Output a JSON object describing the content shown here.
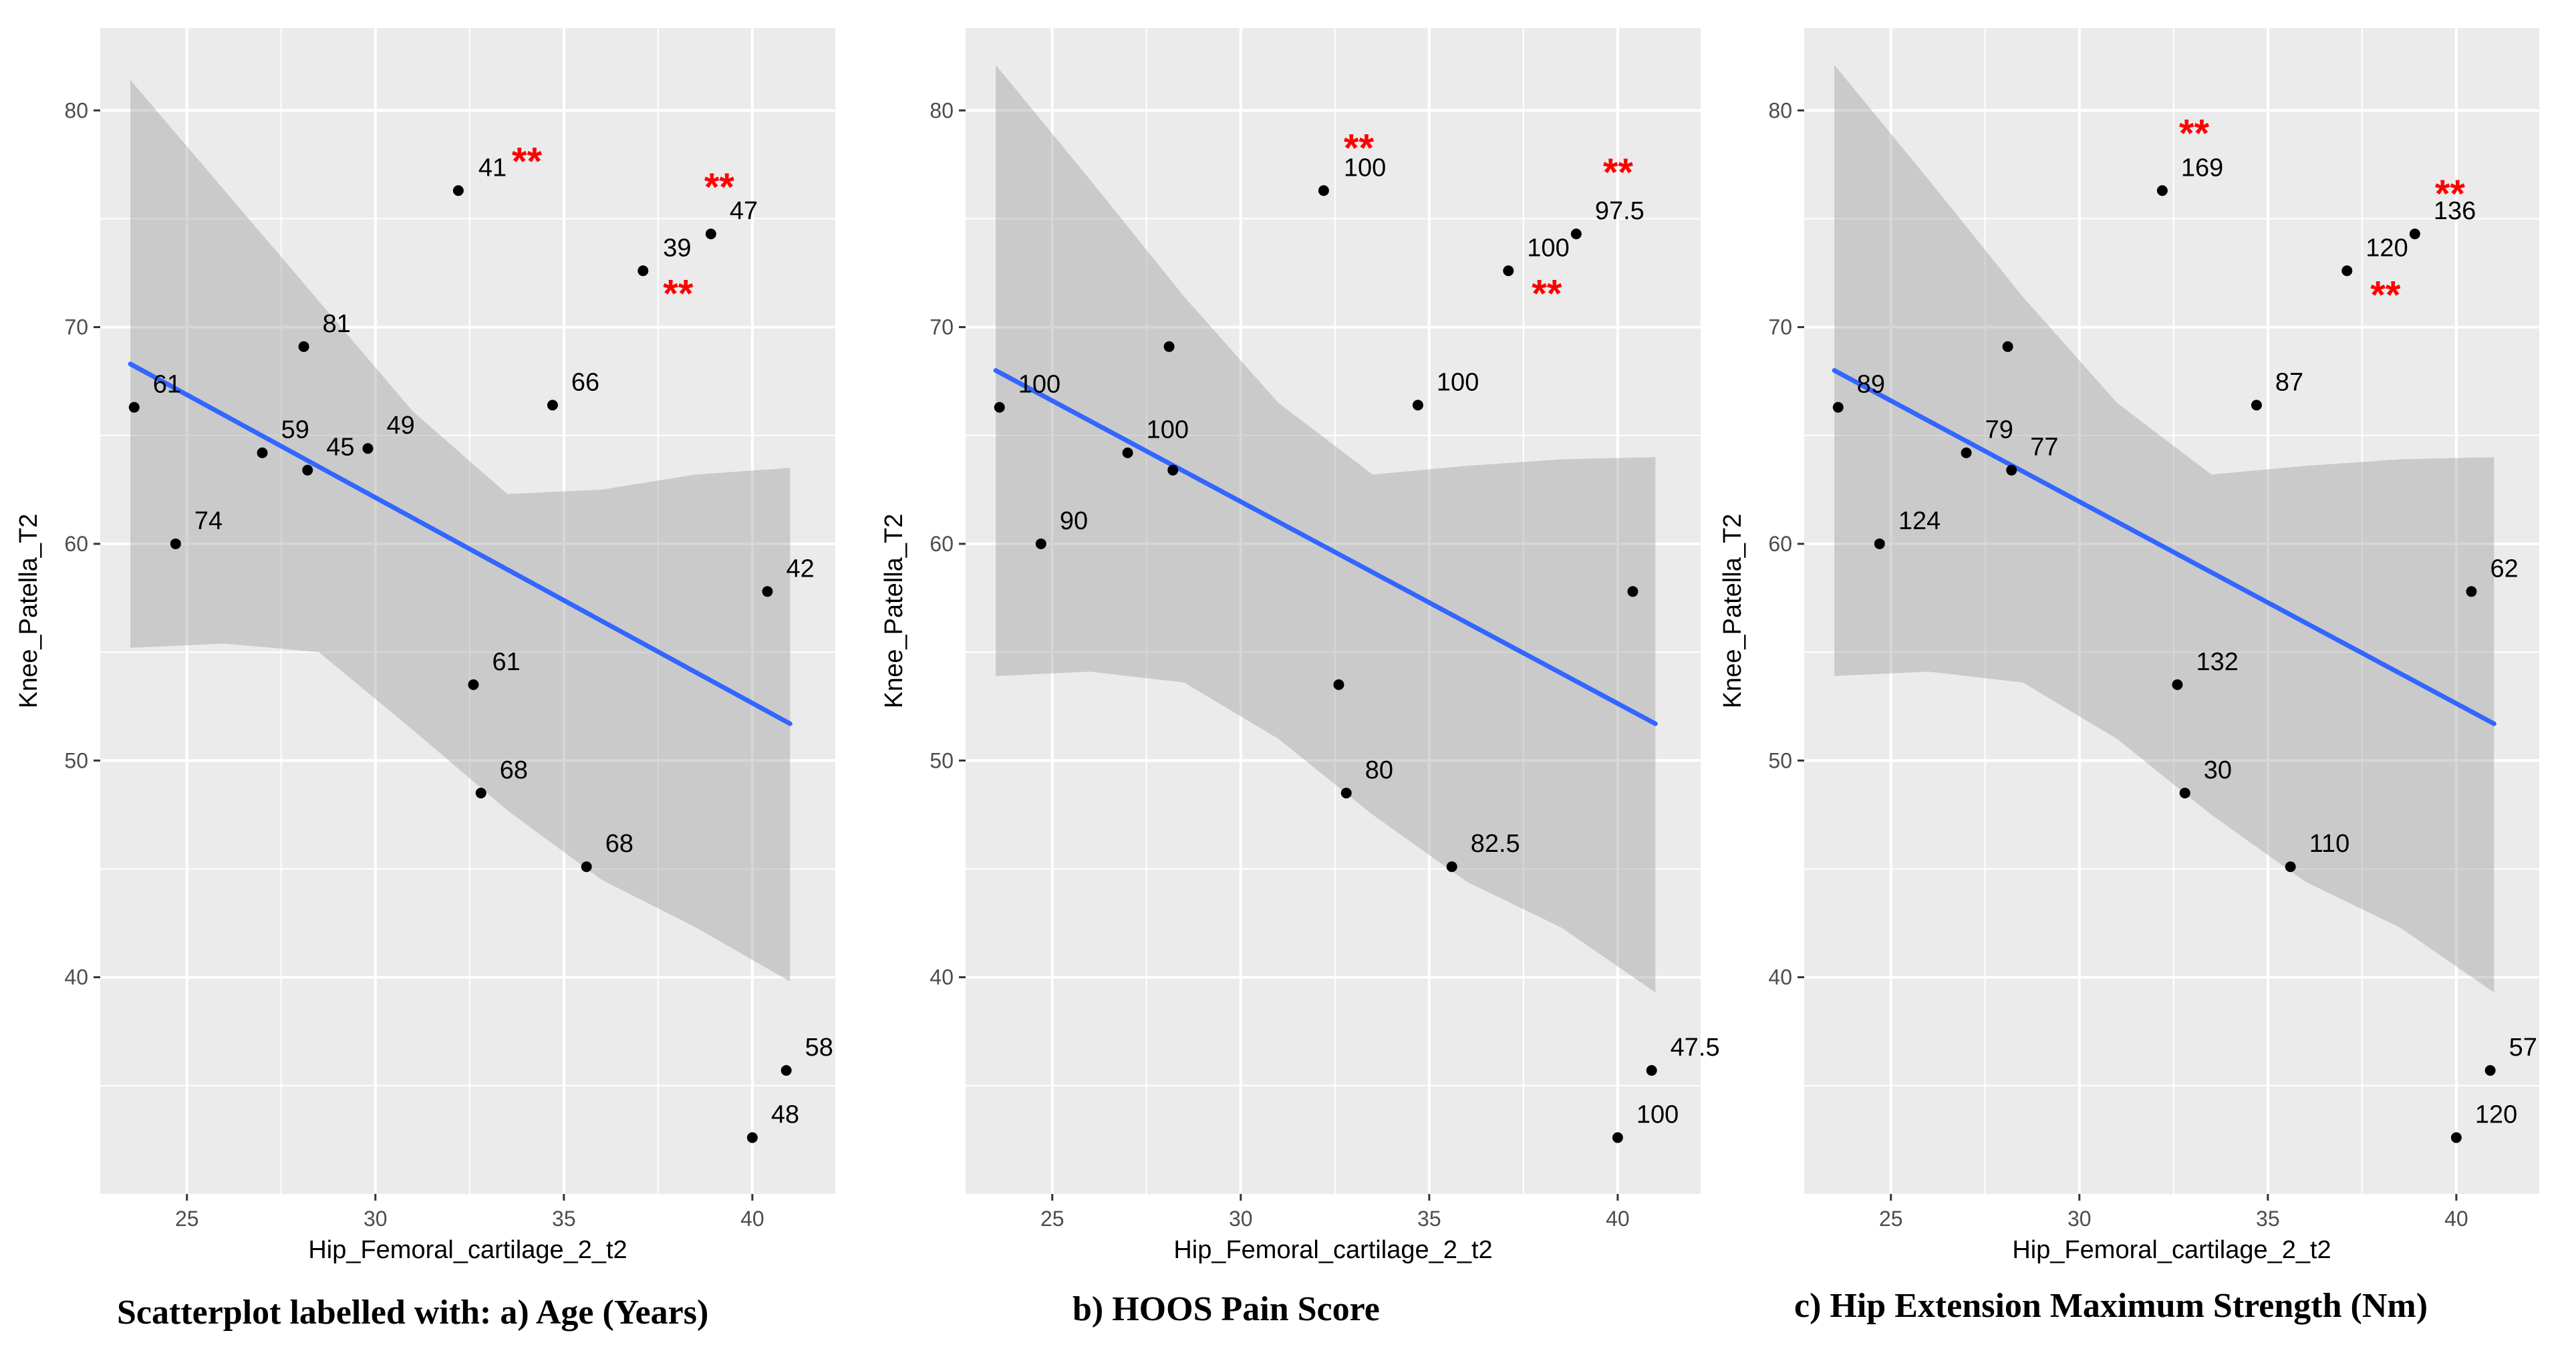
{
  "chart_data": [
    {
      "type": "scatter",
      "panel": "a",
      "caption": "Scatterplot labelled with: a) Age (Years)",
      "xlabel": "Hip_Femoral_cartilage_2_t2",
      "ylabel": "Knee_Patella_T2",
      "xlim": [
        22.7,
        42.2
      ],
      "ylim": [
        30.0,
        83.8
      ],
      "xticks": [
        25,
        30,
        35,
        40
      ],
      "yticks": [
        40,
        50,
        60,
        70,
        80
      ],
      "grid": true,
      "points": [
        {
          "x": 23.6,
          "y": 66.3,
          "label": "61"
        },
        {
          "x": 24.7,
          "y": 60.0,
          "label": "74"
        },
        {
          "x": 27.0,
          "y": 64.2,
          "label": "59"
        },
        {
          "x": 28.1,
          "y": 69.1,
          "label": "81"
        },
        {
          "x": 28.2,
          "y": 63.4,
          "label": "45"
        },
        {
          "x": 29.8,
          "y": 64.4,
          "label": "49"
        },
        {
          "x": 32.2,
          "y": 76.3,
          "label": "41",
          "marker": "**"
        },
        {
          "x": 32.6,
          "y": 53.5,
          "label": "61"
        },
        {
          "x": 32.8,
          "y": 48.5,
          "label": "68"
        },
        {
          "x": 34.7,
          "y": 66.4,
          "label": "66"
        },
        {
          "x": 35.6,
          "y": 45.1,
          "label": "68"
        },
        {
          "x": 37.1,
          "y": 72.6,
          "label": "39",
          "marker": "**"
        },
        {
          "x": 38.9,
          "y": 74.3,
          "label": "47",
          "marker": "**"
        },
        {
          "x": 40.0,
          "y": 32.6,
          "label": "48"
        },
        {
          "x": 40.4,
          "y": 57.8,
          "label": "42"
        },
        {
          "x": 40.9,
          "y": 35.7,
          "label": "58"
        }
      ],
      "regression": {
        "x": [
          23.5,
          41.0
        ],
        "y": [
          68.3,
          51.7
        ]
      },
      "confidence_band": {
        "x": [
          23.5,
          26.0,
          28.5,
          31.0,
          33.5,
          36.0,
          38.5,
          41.0
        ],
        "upper": [
          81.4,
          76.3,
          71.2,
          66.1,
          62.3,
          62.5,
          63.2,
          63.5
        ],
        "lower": [
          55.2,
          55.4,
          55.0,
          51.4,
          47.7,
          44.5,
          42.3,
          39.8
        ]
      }
    },
    {
      "type": "scatter",
      "panel": "b",
      "caption": "b) HOOS Pain Score",
      "xlabel": "Hip_Femoral_cartilage_2_t2",
      "ylabel": "Knee_Patella_T2",
      "xlim": [
        22.7,
        42.2
      ],
      "ylim": [
        30.0,
        83.8
      ],
      "xticks": [
        25,
        30,
        35,
        40
      ],
      "yticks": [
        40,
        50,
        60,
        70,
        80
      ],
      "grid": true,
      "points": [
        {
          "x": 23.6,
          "y": 66.3,
          "label": "100"
        },
        {
          "x": 24.7,
          "y": 60.0,
          "label": "90"
        },
        {
          "x": 27.0,
          "y": 64.2,
          "label": "100"
        },
        {
          "x": 28.1,
          "y": 69.1,
          "label": ""
        },
        {
          "x": 28.2,
          "y": 63.4,
          "label": ""
        },
        {
          "x": 32.2,
          "y": 76.3,
          "label": "100",
          "marker": "**"
        },
        {
          "x": 32.6,
          "y": 53.5,
          "label": ""
        },
        {
          "x": 32.8,
          "y": 48.5,
          "label": "80"
        },
        {
          "x": 34.7,
          "y": 66.4,
          "label": "100"
        },
        {
          "x": 35.6,
          "y": 45.1,
          "label": "82.5"
        },
        {
          "x": 37.1,
          "y": 72.6,
          "label": "100",
          "marker": "**"
        },
        {
          "x": 38.9,
          "y": 74.3,
          "label": "97.5",
          "marker": "**"
        },
        {
          "x": 40.0,
          "y": 32.6,
          "label": "100"
        },
        {
          "x": 40.4,
          "y": 57.8,
          "label": ""
        },
        {
          "x": 40.9,
          "y": 35.7,
          "label": "47.5"
        }
      ],
      "regression": {
        "x": [
          23.5,
          41.0
        ],
        "y": [
          68.0,
          51.7
        ]
      },
      "confidence_band": {
        "x": [
          23.5,
          26.0,
          28.5,
          31.0,
          33.5,
          36.0,
          38.5,
          41.0
        ],
        "upper": [
          82.1,
          76.8,
          71.4,
          66.5,
          63.2,
          63.6,
          63.9,
          64.0
        ],
        "lower": [
          53.9,
          54.1,
          53.6,
          51.0,
          47.5,
          44.4,
          42.3,
          39.3
        ]
      }
    },
    {
      "type": "scatter",
      "panel": "c",
      "caption": "c) Hip Extension Maximum Strength (Nm)",
      "xlabel": "Hip_Femoral_cartilage_2_t2",
      "ylabel": "Knee_Patella_T2",
      "xlim": [
        22.7,
        42.2
      ],
      "ylim": [
        30.0,
        83.8
      ],
      "xticks": [
        25,
        30,
        35,
        40
      ],
      "yticks": [
        40,
        50,
        60,
        70,
        80
      ],
      "grid": true,
      "points": [
        {
          "x": 23.6,
          "y": 66.3,
          "label": "89"
        },
        {
          "x": 24.7,
          "y": 60.0,
          "label": "124"
        },
        {
          "x": 27.0,
          "y": 64.2,
          "label": "79"
        },
        {
          "x": 28.1,
          "y": 69.1,
          "label": ""
        },
        {
          "x": 28.2,
          "y": 63.4,
          "label": "77"
        },
        {
          "x": 32.2,
          "y": 76.3,
          "label": "169",
          "marker": "**"
        },
        {
          "x": 32.6,
          "y": 53.5,
          "label": "132"
        },
        {
          "x": 32.8,
          "y": 48.5,
          "label": "30"
        },
        {
          "x": 34.7,
          "y": 66.4,
          "label": "87"
        },
        {
          "x": 35.6,
          "y": 45.1,
          "label": "110"
        },
        {
          "x": 37.1,
          "y": 72.6,
          "label": "120",
          "marker": "**"
        },
        {
          "x": 38.9,
          "y": 74.3,
          "label": "136",
          "marker": "**"
        },
        {
          "x": 40.0,
          "y": 32.6,
          "label": "120"
        },
        {
          "x": 40.4,
          "y": 57.8,
          "label": "62"
        },
        {
          "x": 40.9,
          "y": 35.7,
          "label": "57"
        }
      ],
      "regression": {
        "x": [
          23.5,
          41.0
        ],
        "y": [
          68.0,
          51.7
        ]
      },
      "confidence_band": {
        "x": [
          23.5,
          26.0,
          28.5,
          31.0,
          33.5,
          36.0,
          38.5,
          41.0
        ],
        "upper": [
          82.1,
          76.8,
          71.4,
          66.5,
          63.2,
          63.6,
          63.9,
          64.0
        ],
        "lower": [
          53.9,
          54.1,
          53.6,
          51.0,
          47.5,
          44.4,
          42.3,
          39.3
        ]
      }
    }
  ],
  "colors": {
    "panel_bg": "#ebebeb",
    "grid": "#ffffff",
    "point": "#000000",
    "line": "#3366ff",
    "band": "#999999",
    "marker": "#ff0000",
    "axis_text": "#4d4d4d"
  }
}
